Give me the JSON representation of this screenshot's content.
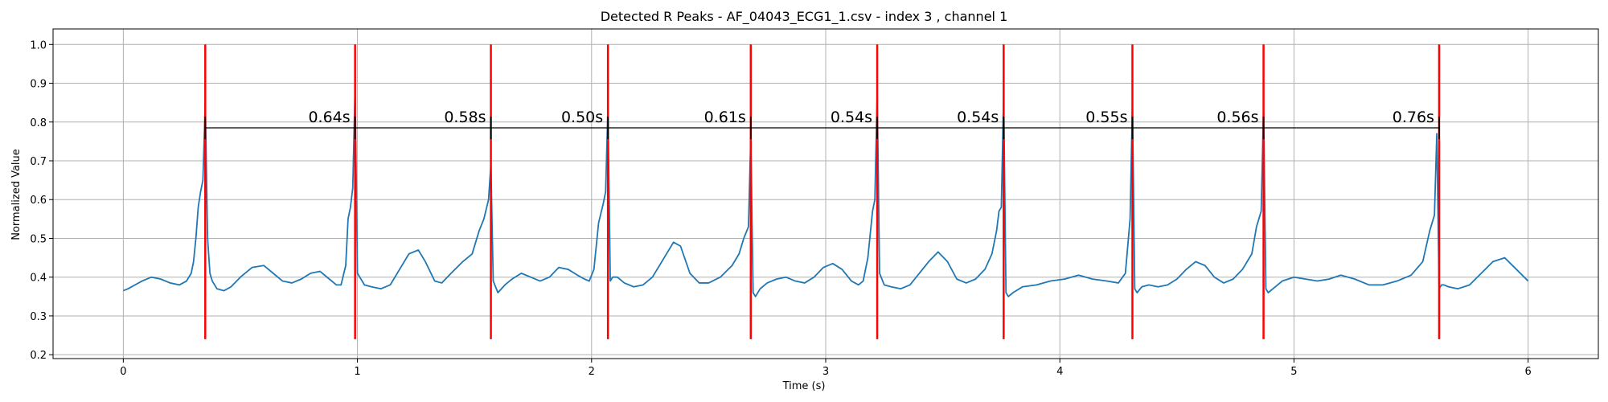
{
  "chart_data": {
    "type": "line",
    "title": "Detected R Peaks - AF_04043_ECG1_1.csv - index 3 , channel 1",
    "xlabel": "Time (s)",
    "ylabel": "Normalized Value",
    "xlim": [
      -0.3,
      6.3
    ],
    "ylim": [
      0.19,
      1.04
    ],
    "xticks": [
      0,
      1,
      2,
      3,
      4,
      5,
      6
    ],
    "xtick_labels": [
      "0",
      "1",
      "2",
      "3",
      "4",
      "5",
      "6"
    ],
    "yticks": [
      0.2,
      0.3,
      0.4,
      0.5,
      0.6,
      0.7,
      0.8,
      0.9,
      1.0
    ],
    "ytick_labels": [
      "0.2",
      "0.3",
      "0.4",
      "0.5",
      "0.6",
      "0.7",
      "0.8",
      "0.9",
      "1.0"
    ],
    "grid": true,
    "colors": {
      "signal": "#1f77b4",
      "peak_marker": "#ff0000",
      "interval_bracket": "#000000",
      "grid": "#b0b0b0"
    },
    "peaks": {
      "times": [
        0.35,
        0.99,
        1.57,
        2.07,
        2.68,
        3.22,
        3.76,
        4.31,
        4.87,
        5.62
      ],
      "amplitudes": [
        0.85,
        0.89,
        0.69,
        0.84,
        0.76,
        0.88,
        0.87,
        0.85,
        0.84,
        0.77
      ],
      "marker_ymin": 0.24,
      "marker_ymax": 1.0
    },
    "intervals": {
      "bracket_y": 0.785,
      "labels": [
        "0.64s",
        "0.58s",
        "0.50s",
        "0.61s",
        "0.54s",
        "0.54s",
        "0.55s",
        "0.56s",
        "0.76s"
      ]
    },
    "series": [
      {
        "x": [
          0.0,
          0.02,
          0.05,
          0.08,
          0.12,
          0.16,
          0.2,
          0.24,
          0.27,
          0.29,
          0.3,
          0.31,
          0.32,
          0.33,
          0.34,
          0.35,
          0.36,
          0.37,
          0.38,
          0.4,
          0.43,
          0.46,
          0.5,
          0.55,
          0.6,
          0.64,
          0.68,
          0.72,
          0.76,
          0.8,
          0.84,
          0.88,
          0.91,
          0.93,
          0.95,
          0.96,
          0.97,
          0.98,
          0.99,
          1.0,
          1.01,
          1.03,
          1.06,
          1.1,
          1.14,
          1.18,
          1.22,
          1.26,
          1.29,
          1.33,
          1.36,
          1.4,
          1.45,
          1.49,
          1.52,
          1.54,
          1.56,
          1.57,
          1.58,
          1.6,
          1.63,
          1.66,
          1.7,
          1.74,
          1.78,
          1.82,
          1.86,
          1.9,
          1.94,
          1.97,
          1.99,
          2.01,
          2.03,
          2.05,
          2.06,
          2.07,
          2.08,
          2.09,
          2.11,
          2.14,
          2.18,
          2.22,
          2.26,
          2.3,
          2.35,
          2.38,
          2.42,
          2.46,
          2.5,
          2.55,
          2.6,
          2.63,
          2.65,
          2.67,
          2.68,
          2.69,
          2.7,
          2.72,
          2.75,
          2.79,
          2.83,
          2.87,
          2.91,
          2.95,
          2.99,
          3.03,
          3.07,
          3.11,
          3.14,
          3.16,
          3.18,
          3.2,
          3.21,
          3.22,
          3.23,
          3.25,
          3.28,
          3.32,
          3.36,
          3.4,
          3.44,
          3.48,
          3.52,
          3.56,
          3.6,
          3.64,
          3.68,
          3.71,
          3.73,
          3.74,
          3.75,
          3.76,
          3.77,
          3.78,
          3.8,
          3.84,
          3.9,
          3.96,
          4.02,
          4.08,
          4.14,
          4.2,
          4.25,
          4.28,
          4.29,
          4.3,
          4.31,
          4.32,
          4.33,
          4.35,
          4.38,
          4.42,
          4.46,
          4.5,
          4.54,
          4.58,
          4.62,
          4.66,
          4.7,
          4.74,
          4.78,
          4.82,
          4.84,
          4.86,
          4.87,
          4.88,
          4.89,
          4.91,
          4.95,
          5.0,
          5.05,
          5.1,
          5.15,
          5.2,
          5.26,
          5.32,
          5.38,
          5.44,
          5.5,
          5.55,
          5.58,
          5.6,
          5.61,
          5.62,
          5.63,
          5.64,
          5.66,
          5.7,
          5.75,
          5.8,
          5.85,
          5.9,
          5.95,
          6.0
        ],
        "values": [
          0.365,
          0.37,
          0.38,
          0.39,
          0.4,
          0.395,
          0.385,
          0.38,
          0.39,
          0.41,
          0.44,
          0.5,
          0.58,
          0.62,
          0.65,
          0.85,
          0.5,
          0.41,
          0.39,
          0.37,
          0.365,
          0.375,
          0.4,
          0.425,
          0.43,
          0.41,
          0.39,
          0.385,
          0.395,
          0.41,
          0.415,
          0.395,
          0.38,
          0.38,
          0.43,
          0.55,
          0.58,
          0.63,
          0.89,
          0.41,
          0.4,
          0.38,
          0.375,
          0.37,
          0.38,
          0.42,
          0.46,
          0.47,
          0.44,
          0.39,
          0.385,
          0.41,
          0.44,
          0.46,
          0.52,
          0.55,
          0.6,
          0.69,
          0.39,
          0.36,
          0.38,
          0.395,
          0.41,
          0.4,
          0.39,
          0.4,
          0.425,
          0.42,
          0.405,
          0.395,
          0.39,
          0.42,
          0.54,
          0.59,
          0.62,
          0.84,
          0.39,
          0.4,
          0.4,
          0.385,
          0.375,
          0.38,
          0.4,
          0.44,
          0.49,
          0.48,
          0.41,
          0.385,
          0.385,
          0.4,
          0.43,
          0.46,
          0.5,
          0.53,
          0.76,
          0.36,
          0.35,
          0.37,
          0.385,
          0.395,
          0.4,
          0.39,
          0.385,
          0.4,
          0.425,
          0.435,
          0.42,
          0.39,
          0.38,
          0.39,
          0.45,
          0.57,
          0.6,
          0.88,
          0.41,
          0.38,
          0.375,
          0.37,
          0.38,
          0.41,
          0.44,
          0.465,
          0.44,
          0.395,
          0.385,
          0.395,
          0.42,
          0.46,
          0.52,
          0.57,
          0.58,
          0.87,
          0.36,
          0.35,
          0.36,
          0.375,
          0.38,
          0.39,
          0.395,
          0.405,
          0.395,
          0.39,
          0.385,
          0.41,
          0.48,
          0.55,
          0.85,
          0.37,
          0.36,
          0.375,
          0.38,
          0.375,
          0.38,
          0.395,
          0.42,
          0.44,
          0.43,
          0.4,
          0.385,
          0.395,
          0.42,
          0.46,
          0.53,
          0.57,
          0.84,
          0.37,
          0.36,
          0.37,
          0.39,
          0.4,
          0.395,
          0.39,
          0.395,
          0.405,
          0.395,
          0.38,
          0.38,
          0.39,
          0.405,
          0.44,
          0.52,
          0.56,
          0.77,
          0.37,
          0.38,
          0.38,
          0.375,
          0.37,
          0.38,
          0.41,
          0.44,
          0.45,
          0.42,
          0.39
        ]
      }
    ]
  }
}
